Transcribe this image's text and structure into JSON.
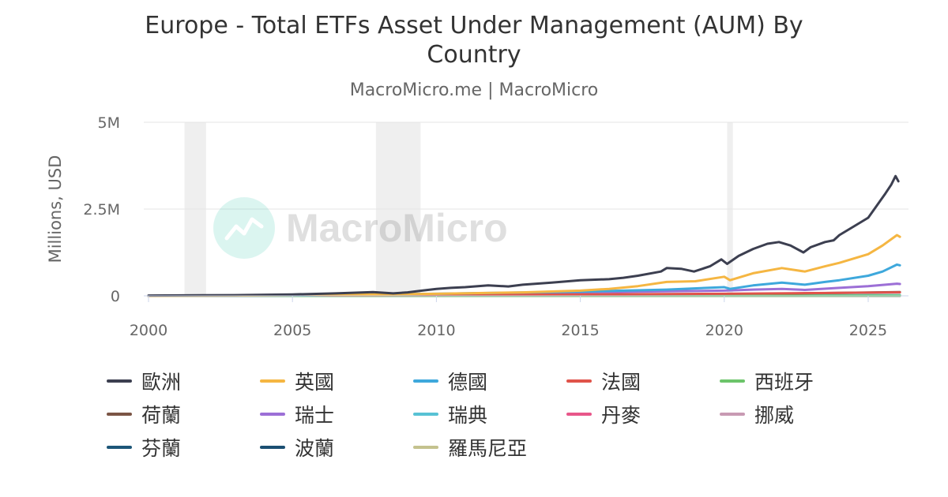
{
  "header": {
    "title": "Europe - Total ETFs Asset Under Management (AUM) By Country",
    "subtitle": "MacroMicro.me | MacroMicro"
  },
  "watermark": {
    "text": "MacroMicro",
    "icon": "macromicro-logo-icon"
  },
  "chart_data": {
    "type": "line",
    "title": "Europe - Total ETFs Asset Under Management (AUM) By Country",
    "subtitle": "MacroMicro.me | MacroMicro",
    "ylabel": "Millions, USD",
    "xlabel": "",
    "ylim": [
      0,
      5000000
    ],
    "xlim": [
      2000,
      2026.4
    ],
    "y_ticks": [
      {
        "value": 0,
        "label": "0"
      },
      {
        "value": 2500000,
        "label": "2.5M"
      },
      {
        "value": 5000000,
        "label": "5M"
      }
    ],
    "x_ticks": [
      {
        "value": 2000,
        "label": "2000"
      },
      {
        "value": 2005,
        "label": "2005"
      },
      {
        "value": 2010,
        "label": "2010"
      },
      {
        "value": 2015,
        "label": "2015"
      },
      {
        "value": 2020,
        "label": "2020"
      },
      {
        "value": 2025,
        "label": "2025"
      }
    ],
    "grid": true,
    "legend_position": "bottom",
    "shaded_periods": [
      [
        2001.25,
        2002.0
      ],
      [
        2007.9,
        2009.45
      ],
      [
        2020.1,
        2020.3
      ]
    ],
    "series": [
      {
        "name": "歐洲",
        "color": "#3c3f50",
        "x": [
          2000,
          2003,
          2005,
          2006.5,
          2007.8,
          2008.5,
          2009,
          2009.5,
          2010,
          2010.5,
          2011,
          2011.8,
          2012.5,
          2013,
          2014,
          2015,
          2016,
          2016.5,
          2017,
          2017.8,
          2018,
          2018.5,
          2018.95,
          2019.5,
          2019.9,
          2020.1,
          2020.5,
          2021,
          2021.5,
          2021.9,
          2022.3,
          2022.75,
          2023,
          2023.5,
          2023.8,
          2024,
          2024.5,
          2025,
          2025.3,
          2025.6,
          2025.8,
          2025.95,
          2026.05
        ],
        "y": [
          10000,
          20000,
          40000,
          70000,
          110000,
          70000,
          100000,
          150000,
          200000,
          230000,
          250000,
          300000,
          270000,
          320000,
          380000,
          450000,
          480000,
          520000,
          580000,
          700000,
          800000,
          780000,
          700000,
          850000,
          1050000,
          920000,
          1150000,
          1350000,
          1500000,
          1550000,
          1450000,
          1250000,
          1400000,
          1550000,
          1600000,
          1750000,
          2000000,
          2250000,
          2600000,
          2950000,
          3200000,
          3450000,
          3300000
        ]
      },
      {
        "name": "英國",
        "color": "#f5b642",
        "x": [
          2000,
          2005,
          2010,
          2013,
          2015,
          2016,
          2017,
          2018,
          2019,
          2020,
          2020.2,
          2021,
          2022,
          2022.8,
          2023.5,
          2024,
          2025,
          2025.5,
          2026,
          2026.1
        ],
        "y": [
          0,
          15000,
          60000,
          100000,
          150000,
          200000,
          280000,
          400000,
          420000,
          550000,
          450000,
          650000,
          800000,
          700000,
          850000,
          950000,
          1200000,
          1450000,
          1750000,
          1700000
        ]
      },
      {
        "name": "德國",
        "color": "#3ea8dc",
        "x": [
          2000,
          2005,
          2010,
          2015,
          2018,
          2020,
          2020.2,
          2021,
          2022,
          2022.8,
          2023.5,
          2024,
          2025,
          2025.5,
          2026,
          2026.1
        ],
        "y": [
          0,
          10000,
          60000,
          120000,
          180000,
          250000,
          200000,
          300000,
          380000,
          320000,
          400000,
          450000,
          580000,
          700000,
          900000,
          880000
        ]
      },
      {
        "name": "法國",
        "color": "#e0534a",
        "x": [
          2000,
          2010,
          2015,
          2020,
          2026.1
        ],
        "y": [
          0,
          20000,
          40000,
          60000,
          100000
        ]
      },
      {
        "name": "西班牙",
        "color": "#6cc46a",
        "x": [
          2000,
          2026.1
        ],
        "y": [
          0,
          5000
        ]
      },
      {
        "name": "荷蘭",
        "color": "#7b5545",
        "x": [
          2000,
          2010,
          2020,
          2026.1
        ],
        "y": [
          0,
          10000,
          40000,
          110000
        ]
      },
      {
        "name": "瑞士",
        "color": "#9c6fd6",
        "x": [
          2000,
          2005,
          2010,
          2015,
          2018,
          2020,
          2021,
          2022,
          2022.8,
          2024,
          2025,
          2026,
          2026.1
        ],
        "y": [
          0,
          10000,
          50000,
          100000,
          130000,
          150000,
          180000,
          200000,
          170000,
          230000,
          280000,
          350000,
          340000
        ]
      },
      {
        "name": "瑞典",
        "color": "#58c2d4",
        "x": [
          2000,
          2026.1
        ],
        "y": [
          0,
          20000
        ]
      },
      {
        "name": "丹麥",
        "color": "#e8578a",
        "x": [
          2000,
          2026.1
        ],
        "y": [
          0,
          5000
        ]
      },
      {
        "name": "挪威",
        "color": "#c89ab3",
        "x": [
          2000,
          2026.1
        ],
        "y": [
          0,
          5000
        ]
      },
      {
        "name": "芬蘭",
        "color": "#1d5678",
        "x": [
          2000,
          2026.1
        ],
        "y": [
          0,
          3000
        ]
      },
      {
        "name": "波蘭",
        "color": "#1b4f72",
        "x": [
          2000,
          2014.9
        ],
        "y": [
          0,
          0
        ]
      },
      {
        "name": "羅馬尼亞",
        "color": "#c4c28e",
        "x": [
          2000,
          2026.1
        ],
        "y": [
          0,
          2000
        ]
      }
    ]
  }
}
